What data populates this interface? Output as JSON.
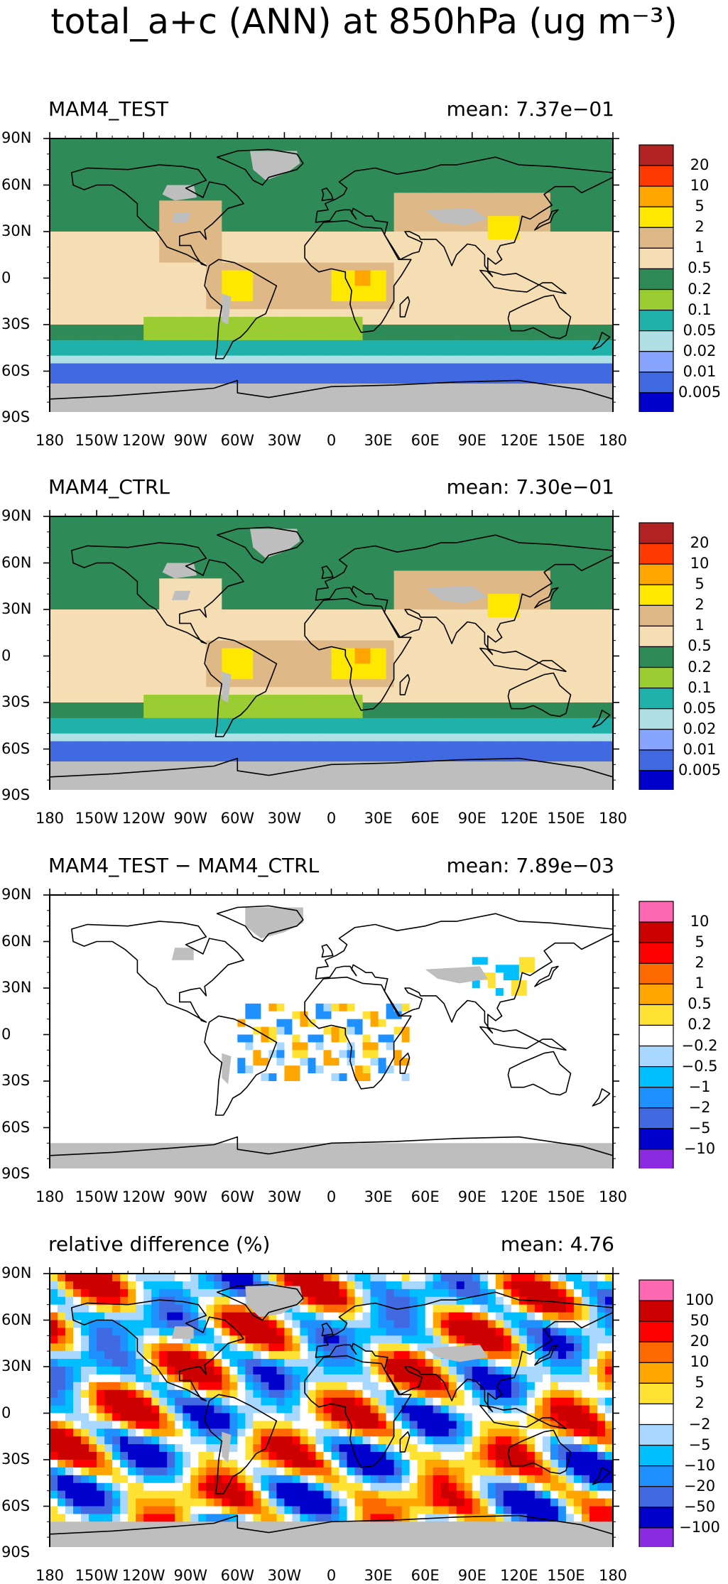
{
  "title": "total_a+c (ANN) at 850hPa (ug m⁻³)",
  "lat_ticks": [
    "90N",
    "60N",
    "30N",
    "0",
    "30S",
    "60S",
    "90S"
  ],
  "lon_ticks": [
    "180",
    "150W",
    "120W",
    "90W",
    "60W",
    "30W",
    "0",
    "30E",
    "60E",
    "90E",
    "120E",
    "150E",
    "180"
  ],
  "panels": [
    {
      "name": "MAM4_TEST",
      "title": "MAM4_TEST",
      "mean": "mean: 7.37e−01",
      "scale": "abs",
      "colorbar": {
        "colors": [
          "#b22222",
          "#ff3a00",
          "#ffa500",
          "#ffe800",
          "#deb887",
          "#f5deb3",
          "#2e8b57",
          "#9acd32",
          "#20b2aa",
          "#b0e0e6",
          "#87a5ff",
          "#4169e1",
          "#0000cd"
        ],
        "labels": [
          "20",
          "10",
          "5",
          "2",
          "1",
          "0.5",
          "0.2",
          "0.1",
          "0.05",
          "0.02",
          "0.01",
          "0.005"
        ]
      }
    },
    {
      "name": "MAM4_CTRL",
      "title": "MAM4_CTRL",
      "mean": "mean: 7.30e−01",
      "scale": "abs",
      "colorbar": {
        "colors": [
          "#b22222",
          "#ff3a00",
          "#ffa500",
          "#ffe800",
          "#deb887",
          "#f5deb3",
          "#2e8b57",
          "#9acd32",
          "#20b2aa",
          "#b0e0e6",
          "#87a5ff",
          "#4169e1",
          "#0000cd"
        ],
        "labels": [
          "20",
          "10",
          "5",
          "2",
          "1",
          "0.5",
          "0.2",
          "0.1",
          "0.05",
          "0.02",
          "0.01",
          "0.005"
        ]
      }
    },
    {
      "name": "difference",
      "title": "MAM4_TEST − MAM4_CTRL",
      "mean": "mean: 7.89e−03",
      "scale": "diff",
      "colorbar": {
        "colors": [
          "#ff69b4",
          "#cd0000",
          "#ff0000",
          "#ff6a00",
          "#ffa500",
          "#ffe234",
          "#ffffff",
          "#a8d8ff",
          "#00bfff",
          "#1e90ff",
          "#4169e1",
          "#0000cd",
          "#8a2be2"
        ],
        "labels": [
          "10",
          "5",
          "2",
          "1",
          "0.5",
          "0.2",
          "−0.2",
          "−0.5",
          "−1",
          "−2",
          "−5",
          "−10"
        ]
      }
    },
    {
      "name": "relative-difference",
      "title": "relative difference (%)",
      "mean": "mean:   4.76",
      "scale": "rel",
      "colorbar": {
        "colors": [
          "#ff69b4",
          "#cd0000",
          "#ff0000",
          "#ff6a00",
          "#ffa500",
          "#ffe234",
          "#ffffff",
          "#a8d8ff",
          "#00bfff",
          "#1e90ff",
          "#4169e1",
          "#0000cd",
          "#8a2be2"
        ],
        "labels": [
          "100",
          "50",
          "20",
          "10",
          "5",
          "2",
          "−2",
          "−5",
          "−10",
          "−20",
          "−50",
          "−100"
        ]
      }
    }
  ],
  "colors": {
    "land_mask": "#bebebe",
    "coast": "#000000"
  }
}
